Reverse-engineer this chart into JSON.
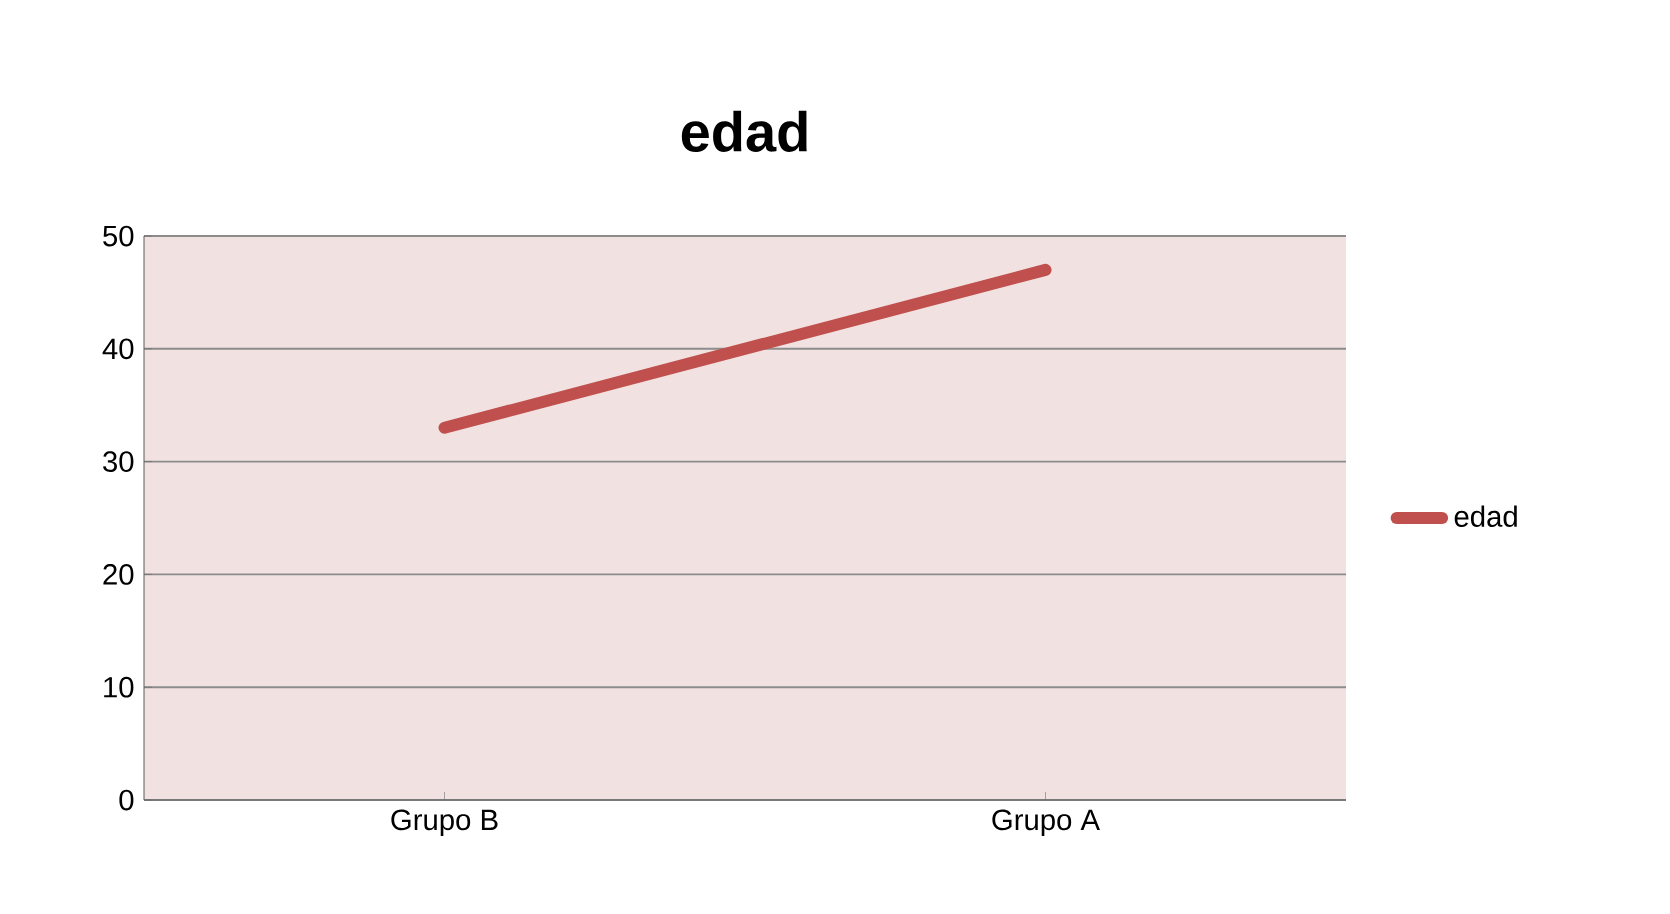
{
  "chart_data": {
    "type": "line",
    "title": "edad",
    "categories": [
      "Grupo B",
      "Grupo A"
    ],
    "series": [
      {
        "name": "edad",
        "color": "#c0504d",
        "values": [
          33,
          47
        ]
      }
    ],
    "ylim": [
      0,
      50
    ],
    "yticks": [
      0,
      10,
      20,
      30,
      40,
      50
    ],
    "grid": "y",
    "legend": "right",
    "marker": "none",
    "line_style": "solid"
  }
}
